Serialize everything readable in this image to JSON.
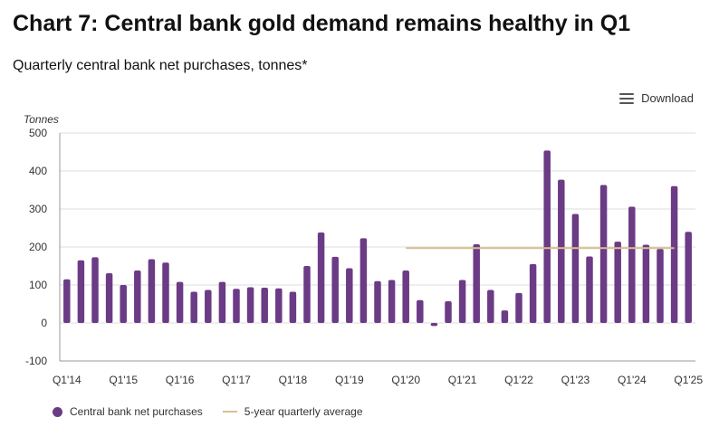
{
  "header": {
    "title": "Chart 7: Central bank gold demand remains healthy in Q1",
    "subtitle": "Quarterly central bank net purchases, tonnes*",
    "download_label": "Download"
  },
  "colors": {
    "bar": "#6b3b86",
    "average_line": "#d8c08f",
    "grid": "#dddddd"
  },
  "icons": {
    "download": "menu-icon"
  },
  "legend": {
    "bars": "Central bank net purchases",
    "line": "5-year quarterly average"
  },
  "chart_data": {
    "type": "bar",
    "ylabel": "Tonnes",
    "ylim": [
      -100,
      500
    ],
    "yticks": [
      -100,
      0,
      100,
      200,
      300,
      400,
      500
    ],
    "categories": [
      "Q1'14",
      "Q2'14",
      "Q3'14",
      "Q4'14",
      "Q1'15",
      "Q2'15",
      "Q3'15",
      "Q4'15",
      "Q1'16",
      "Q2'16",
      "Q3'16",
      "Q4'16",
      "Q1'17",
      "Q2'17",
      "Q3'17",
      "Q4'17",
      "Q1'18",
      "Q2'18",
      "Q3'18",
      "Q4'18",
      "Q1'19",
      "Q2'19",
      "Q3'19",
      "Q4'19",
      "Q1'20",
      "Q2'20",
      "Q3'20",
      "Q4'20",
      "Q1'21",
      "Q2'21",
      "Q3'21",
      "Q4'21",
      "Q1'22",
      "Q2'22",
      "Q3'22",
      "Q4'22",
      "Q1'23",
      "Q2'23",
      "Q3'23",
      "Q4'23",
      "Q1'24",
      "Q2'24",
      "Q3'24",
      "Q4'24",
      "Q1'25"
    ],
    "xtick_labels": [
      "Q1'14",
      "Q1'15",
      "Q1'16",
      "Q1'17",
      "Q1'18",
      "Q1'19",
      "Q1'20",
      "Q1'21",
      "Q1'22",
      "Q1'23",
      "Q1'24",
      "Q1'25"
    ],
    "series": [
      {
        "name": "Central bank net purchases",
        "values": [
          115,
          165,
          173,
          131,
          100,
          138,
          168,
          159,
          108,
          82,
          87,
          108,
          90,
          94,
          93,
          91,
          82,
          150,
          238,
          174,
          144,
          223,
          110,
          113,
          138,
          60,
          -8,
          57,
          113,
          207,
          87,
          33,
          79,
          155,
          454,
          377,
          287,
          175,
          363,
          214,
          306,
          206,
          195,
          360,
          240
        ]
      }
    ],
    "reference_line": {
      "name": "5-year quarterly average",
      "value": 197,
      "from": "Q1'20",
      "to": "Q4'24"
    }
  }
}
